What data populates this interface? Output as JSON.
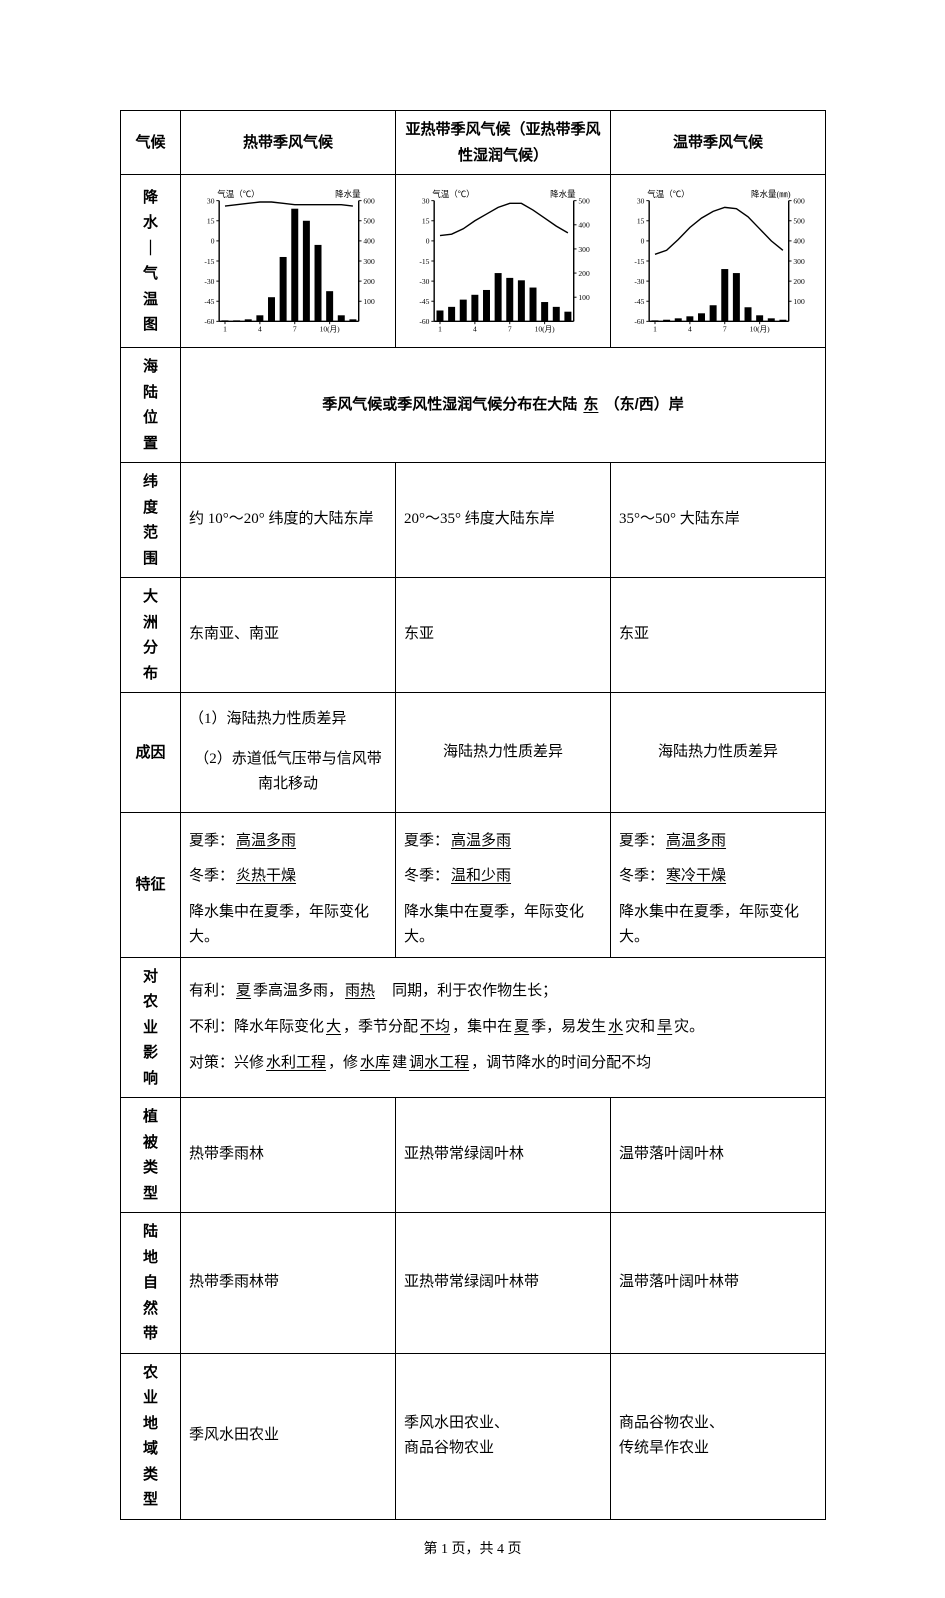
{
  "header": {
    "row_label_climate": "气候",
    "col1": "热带季风气候",
    "col2": "亚热带季风气候（亚热带季风性湿润气候）",
    "col3": "温带季风气候"
  },
  "chart_row_label": [
    "降",
    "水",
    "｜",
    "气",
    "温",
    "图"
  ],
  "charts": {
    "temp_label": "气温（℃）",
    "precip_label": "降水量",
    "precip_label_alt": "降水量(㎜)",
    "tropical": {
      "temp_ticks": [
        30,
        15,
        0,
        -15,
        -30,
        -45,
        -60
      ],
      "precip_ticks": [
        600,
        500,
        400,
        300,
        200,
        100
      ],
      "temp_line": [
        26,
        27,
        28,
        29,
        29,
        28,
        27,
        27,
        27,
        27,
        27,
        26
      ],
      "bars": [
        5,
        5,
        10,
        30,
        120,
        320,
        560,
        500,
        380,
        150,
        30,
        10
      ],
      "x_ticks": [
        "1",
        "4",
        "7",
        "10(月)"
      ],
      "bg": "#ffffff",
      "line": "#000000",
      "bar": "#000000",
      "axis": "#000000",
      "ymax_p": 600
    },
    "subtropical": {
      "temp_ticks": [
        30,
        15,
        0,
        -15,
        -30,
        -45,
        -60
      ],
      "precip_ticks": [
        500,
        400,
        300,
        200,
        100
      ],
      "temp_line": [
        4,
        5,
        9,
        15,
        20,
        25,
        28,
        28,
        23,
        17,
        11,
        6
      ],
      "bars": [
        45,
        60,
        90,
        110,
        130,
        200,
        180,
        170,
        140,
        80,
        60,
        40
      ],
      "x_ticks": [
        "1",
        "4",
        "7",
        "10(月)"
      ],
      "bg": "#ffffff",
      "line": "#000000",
      "bar": "#000000",
      "axis": "#000000",
      "ymax_p": 500
    },
    "temperate": {
      "temp_ticks": [
        30,
        15,
        0,
        -15,
        -30,
        -45,
        -60
      ],
      "precip_ticks": [
        600,
        500,
        400,
        300,
        200,
        100
      ],
      "temp_line": [
        -10,
        -7,
        1,
        10,
        17,
        22,
        25,
        24,
        18,
        9,
        0,
        -7
      ],
      "bars": [
        5,
        8,
        15,
        25,
        40,
        80,
        260,
        240,
        70,
        30,
        15,
        8
      ],
      "x_ticks": [
        "1",
        "4",
        "7",
        "10(月)"
      ],
      "bg": "#ffffff",
      "line": "#000000",
      "bar": "#000000",
      "axis": "#000000",
      "ymax_p": 600
    }
  },
  "sea_land": {
    "label": "海陆位置",
    "text_pre": "季风气候或季风性湿润气候分布在大陆",
    "blank": "东",
    "text_post": "（东/西）岸"
  },
  "latitude": {
    "label": "纬度范围",
    "c1": "约 10°～20° 纬度的大陆东岸",
    "c2": "20°～35° 纬度大陆东岸",
    "c3": "35°～50° 大陆东岸"
  },
  "continent": {
    "label": "大洲分布",
    "c1": "东南亚、南亚",
    "c2": "东亚",
    "c3": "东亚"
  },
  "cause": {
    "label": "成因",
    "c1_l1": "（1）海陆热力性质差异",
    "c1_l2": "（2）赤道低气压带与信风带南北移动",
    "c2": "海陆热力性质差异",
    "c3": "海陆热力性质差异"
  },
  "features": {
    "label": "特征",
    "summer_label": "夏季：",
    "winter_label": "冬季：",
    "c1_summer": "高温多雨",
    "c1_winter": "炎热干燥",
    "c2_summer": "高温多雨",
    "c2_winter": "温和少雨",
    "c3_summer": "高温多雨",
    "c3_winter": "寒冷干燥",
    "common": "降水集中在夏季，年际变化大。"
  },
  "agri": {
    "label": "对农业影响",
    "line1_pre": "有利：",
    "line1_b1": "夏",
    "line1_mid1": "季高温多雨，",
    "line1_b2": "雨热",
    "line1_post": "　同期，利于农作物生长；",
    "line2_pre": "不利：降水年际变化",
    "line2_b1": "大",
    "line2_mid1": "，季节分配",
    "line2_b2": "不均",
    "line2_mid2": "，集中在",
    "line2_b3": "夏",
    "line2_mid3": "季，易发生",
    "line2_b4": "水",
    "line2_mid4": "灾和",
    "line2_b5": "旱",
    "line2_post": "灾。",
    "line3_pre": "对策：兴修",
    "line3_b1": "水利工程",
    "line3_mid1": "，修",
    "line3_b2": "水库",
    "line3_mid2": "建",
    "line3_b3": "调水工程",
    "line3_post": "，调节降水的时间分配不均"
  },
  "veg": {
    "label": "植被类型",
    "c1": "热带季雨林",
    "c2": "亚热带常绿阔叶林",
    "c3": "温带落叶阔叶林"
  },
  "zone": {
    "label": "陆地自然带",
    "c1": "热带季雨林带",
    "c2": "亚热带常绿阔叶林带",
    "c3": "温带落叶阔叶林带"
  },
  "agtype": {
    "label": "农业地域类型",
    "c1": "季风水田农业",
    "c2": "季风水田农业、\n商品谷物农业",
    "c3": "商品谷物农业、\n传统旱作农业"
  },
  "footer": "第 1 页，共 4 页"
}
